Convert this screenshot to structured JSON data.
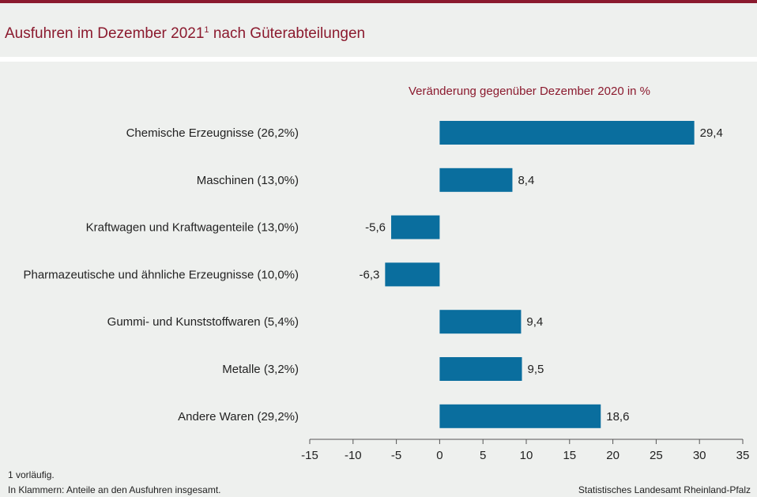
{
  "header": {
    "title": "Ausfuhren im Dezember 2021",
    "title_sup": "1",
    "title_rest": " nach Güterabteilungen",
    "accent_color": "#8b1a2e"
  },
  "chart_data": {
    "type": "bar",
    "orientation": "horizontal",
    "subtitle": "Veränderung gegenüber Dezember 2020 in %",
    "categories": [
      "Chemische Erzeugnisse (26,2%)",
      "Maschinen (13,0%)",
      "Kraftwagen und Kraftwagenteile (13,0%)",
      "Pharmazeutische und ähnliche Erzeugnisse (10,0%)",
      "Gummi- und Kunststoffwaren (5,4%)",
      "Metalle (3,2%)",
      "Andere Waren (29,2%)"
    ],
    "values": [
      29.4,
      8.4,
      -5.6,
      -6.3,
      9.4,
      9.5,
      18.6
    ],
    "value_labels": [
      "29,4",
      "8,4",
      "-5,6",
      "-6,3",
      "9,4",
      "9,5",
      "18,6"
    ],
    "xlim": [
      -15,
      35
    ],
    "xticks": [
      -15,
      -10,
      -5,
      0,
      5,
      10,
      15,
      20,
      25,
      30,
      35
    ],
    "bar_color": "#0a6e9e",
    "grid": false,
    "legend": "none"
  },
  "footer": {
    "note1": "1 vorläufig.",
    "note2": "In Klammern: Anteile an den Ausfuhren insgesamt.",
    "source": "Statistisches Landesamt Rheinland-Pfalz"
  }
}
